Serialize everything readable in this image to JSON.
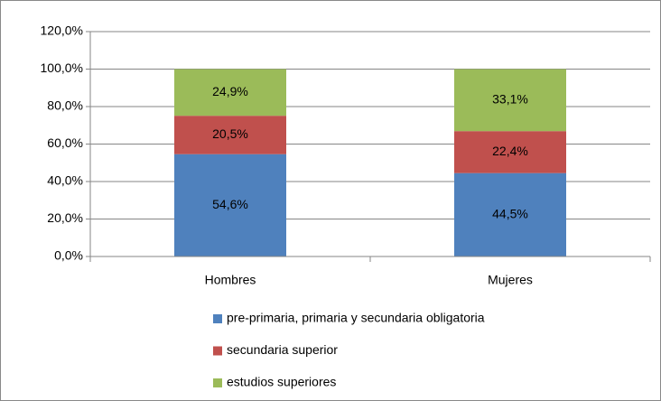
{
  "chart_data": {
    "type": "stacked_bar",
    "categories": [
      "Hombres",
      "Mujeres"
    ],
    "series": [
      {
        "name": "pre-primaria, primaria y secundaria obligatoria",
        "color": "#4f81bd",
        "values": [
          54.6,
          44.5
        ],
        "value_labels": [
          "54,6%",
          "44,5%"
        ]
      },
      {
        "name": "secundaria superior",
        "color": "#c0504d",
        "values": [
          20.5,
          22.4
        ],
        "value_labels": [
          "20,5%",
          "22,4%"
        ]
      },
      {
        "name": "estudios superiores",
        "color": "#9bbb59",
        "values": [
          24.9,
          33.1
        ],
        "value_labels": [
          "24,9%",
          "33,1%"
        ]
      }
    ],
    "ylim": [
      0,
      120
    ],
    "yticks": [
      {
        "value": 0,
        "label": "0,0%"
      },
      {
        "value": 20,
        "label": "20,0%"
      },
      {
        "value": 40,
        "label": "40,0%"
      },
      {
        "value": 60,
        "label": "60,0%"
      },
      {
        "value": 80,
        "label": "80,0%"
      },
      {
        "value": 100,
        "label": "100,0%"
      },
      {
        "value": 120,
        "label": "120,0%"
      }
    ],
    "grid": true,
    "legend": "bottom"
  }
}
